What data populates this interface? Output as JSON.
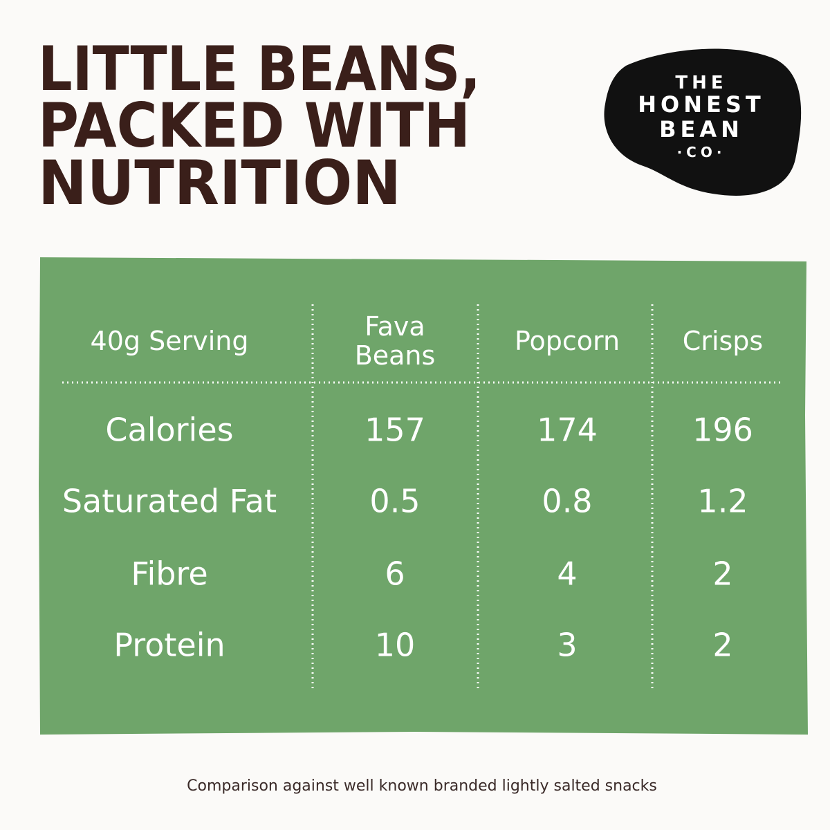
{
  "header": {
    "title_lines": [
      "LITTLE BEANS,",
      "PACKED WITH",
      "NUTRITION"
    ]
  },
  "logo": {
    "lines": [
      "THE",
      "HONEST",
      "BEAN",
      "·CO·"
    ]
  },
  "table": {
    "columns": [
      "40g Serving",
      "Fava Beans",
      "Popcorn",
      "Crisps"
    ],
    "rows": [
      [
        "Calories",
        157,
        174,
        196
      ],
      [
        "Saturated Fat",
        0.5,
        0.8,
        1.2
      ],
      [
        "Fibre",
        6,
        4,
        2
      ],
      [
        "Protein",
        10,
        3,
        2
      ]
    ]
  },
  "footnote": "Comparison against well known branded lightly salted snacks"
}
